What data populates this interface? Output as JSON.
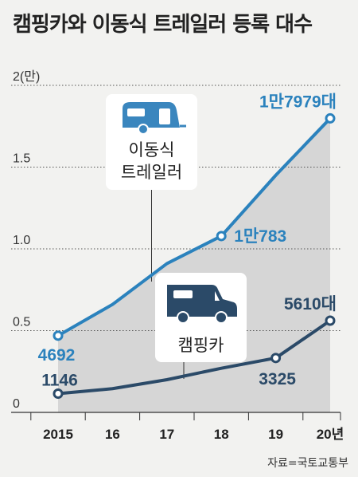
{
  "title": "캠핑카와 이동식 트레일러 등록 대수",
  "source": "자료=국토교통부",
  "chart_data": {
    "type": "line",
    "title": "캠핑카와 이동식 트레일러 등록 대수",
    "categories": [
      "2015",
      "16",
      "17",
      "18",
      "19",
      "20년"
    ],
    "x": [
      2015,
      2016,
      2017,
      2018,
      2019,
      2020
    ],
    "y_ticks": [
      "0",
      "0.5",
      "1.0",
      "1.5",
      "2(만)"
    ],
    "y_tick_values": [
      0,
      5000,
      10000,
      15000,
      20000
    ],
    "ylim": [
      0,
      20000
    ],
    "grid": "horizontal dotted",
    "series": [
      {
        "name": "이동식 트레일러",
        "name_lines": [
          "이동식",
          "트레일러"
        ],
        "values": [
          4692,
          6600,
          9100,
          10783,
          14500,
          17979
        ],
        "labels": [
          "4692",
          "",
          "",
          "1만783",
          "",
          "1만7979대"
        ],
        "color": "#2b82bd",
        "icon": "trailer-icon"
      },
      {
        "name": "캠핑카",
        "values": [
          1146,
          1450,
          2000,
          2700,
          3325,
          5610
        ],
        "labels": [
          "1146",
          "",
          "",
          "",
          "3325",
          "5610대"
        ],
        "color": "#2b4a68",
        "icon": "camper-van-icon"
      }
    ]
  }
}
